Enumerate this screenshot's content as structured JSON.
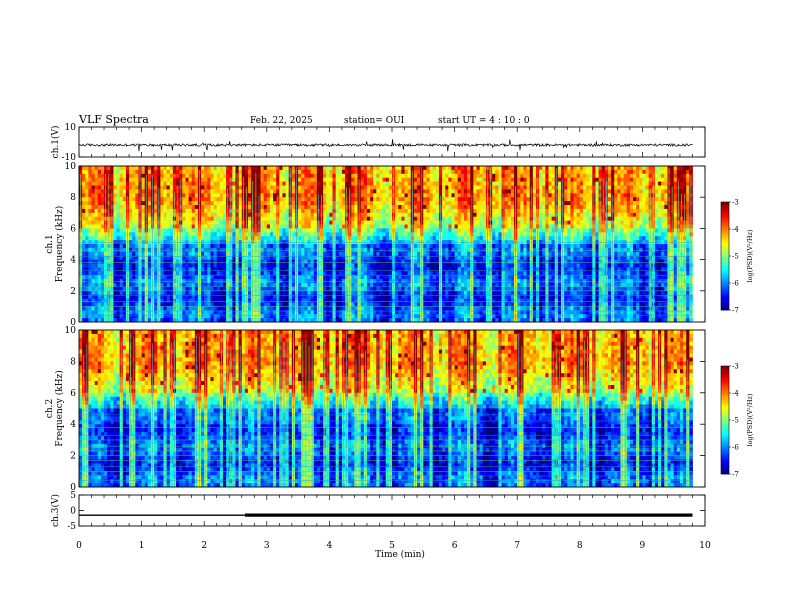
{
  "header": {
    "title": "VLF Spectra",
    "date": "Feb. 22, 2025",
    "station": "station= OUI",
    "start": "start  UT =   4 : 10 : 0"
  },
  "chart_data": [
    {
      "type": "line",
      "name": "ch.1(V) waveform",
      "ylabel": "ch.1(V)",
      "ylim": [
        -10,
        10
      ],
      "yticks": [
        10,
        -10
      ],
      "xlim": [
        0,
        10
      ],
      "baseline": -2,
      "noise_amplitude": 1.6,
      "color": "#000000"
    },
    {
      "type": "heatmap",
      "name": "ch.1 spectrogram",
      "ylabel": "ch.1\nFrequency  (kHz)",
      "ylim": [
        0,
        10
      ],
      "yticks": [
        0,
        2,
        4,
        6,
        8,
        10
      ],
      "xlim": [
        0,
        9.8
      ],
      "colorbar": {
        "label": "log(PSD)(V²/Hz)",
        "range": [
          -7,
          -3
        ],
        "ticks": [
          -3,
          -4,
          -5,
          -6,
          -7
        ]
      }
    },
    {
      "type": "heatmap",
      "name": "ch.2 spectrogram",
      "ylabel": "ch.2\nFrequency  (kHz)",
      "ylim": [
        0,
        10
      ],
      "yticks": [
        0,
        2,
        4,
        6,
        8,
        10
      ],
      "xlim": [
        0,
        9.8
      ],
      "colorbar": {
        "label": "log(PSD)(V²/Hz)",
        "range": [
          -7,
          -3
        ],
        "ticks": [
          -3,
          -4,
          -5,
          -6,
          -7
        ]
      }
    },
    {
      "type": "line",
      "name": "ch.3(V) level",
      "ylabel": "ch.3(V)",
      "ylim": [
        -5,
        5
      ],
      "yticks": [
        5,
        0,
        -5
      ],
      "xlim": [
        0,
        10
      ],
      "series": [
        {
          "x": [
            0,
            2.65
          ],
          "y": [
            -1.5,
            -1.5
          ],
          "style": "thin"
        },
        {
          "x": [
            2.65,
            9.8
          ],
          "y": [
            -1.5,
            -1.5
          ],
          "style": "thick"
        }
      ]
    }
  ],
  "x_axis": {
    "label": "Time  (min)",
    "range": [
      0,
      10
    ],
    "ticks": [
      0,
      1,
      2,
      3,
      4,
      5,
      6,
      7,
      8,
      9,
      10
    ]
  }
}
